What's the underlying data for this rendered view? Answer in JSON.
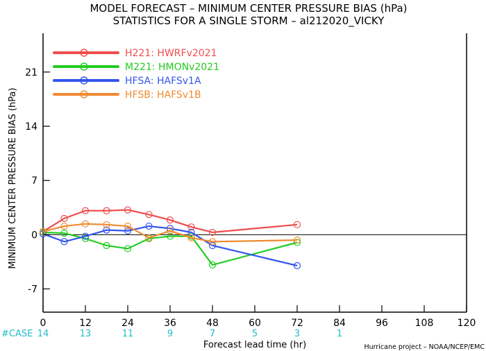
{
  "chart_data": {
    "type": "line",
    "title": "MODEL FORECAST – MINIMUM CENTER PRESSURE BIAS (hPa)",
    "subtitle": "STATISTICS FOR A SINGLE STORM – al212020_VICKY",
    "xlabel": "Forecast lead time (hr)",
    "ylabel": "MINIMUM CENTER PRESSURE BIAS (hPa)",
    "xlim": [
      0,
      120
    ],
    "ylim": [
      -10,
      26
    ],
    "x_ticks": [
      0,
      12,
      24,
      36,
      48,
      60,
      72,
      84,
      96,
      108,
      120
    ],
    "y_ticks": [
      -7,
      0,
      7,
      14,
      21
    ],
    "zero_line": true,
    "legend_position": "top-left",
    "series": [
      {
        "name": "H221: HWRFv2021",
        "color": "#ef4d4d",
        "points": [
          [
            0,
            0.4
          ],
          [
            6,
            2.1
          ],
          [
            12,
            3.1
          ],
          [
            18,
            3.1
          ],
          [
            24,
            3.2
          ],
          [
            30,
            2.6
          ],
          [
            36,
            1.9
          ],
          [
            42,
            1.0
          ],
          [
            48,
            0.3
          ],
          [
            72,
            1.3
          ]
        ]
      },
      {
        "name": "M221: HMONv2021",
        "color": "#22cc22",
        "points": [
          [
            0,
            0.3
          ],
          [
            6,
            0.2
          ],
          [
            12,
            -0.5
          ],
          [
            18,
            -1.4
          ],
          [
            24,
            -1.8
          ],
          [
            30,
            -0.5
          ],
          [
            36,
            -0.2
          ],
          [
            42,
            -0.2
          ],
          [
            48,
            -3.9
          ],
          [
            72,
            -1.0
          ]
        ]
      },
      {
        "name": "HFSA: HAFSv1A",
        "color": "#3355ee",
        "points": [
          [
            0,
            0.1
          ],
          [
            6,
            -0.9
          ],
          [
            12,
            -0.2
          ],
          [
            18,
            0.6
          ],
          [
            24,
            0.5
          ],
          [
            30,
            1.1
          ],
          [
            36,
            0.8
          ],
          [
            42,
            0.3
          ],
          [
            48,
            -1.4
          ],
          [
            72,
            -4.0
          ]
        ]
      },
      {
        "name": "HFSB: HAFSv1B",
        "color": "#f08a30",
        "points": [
          [
            0,
            0.4
          ],
          [
            6,
            1.1
          ],
          [
            12,
            1.4
          ],
          [
            18,
            1.3
          ],
          [
            24,
            1.1
          ],
          [
            30,
            -0.4
          ],
          [
            36,
            0.5
          ],
          [
            42,
            -0.4
          ],
          [
            48,
            -0.9
          ],
          [
            72,
            -0.7
          ]
        ]
      }
    ],
    "case_row": {
      "label": "#CASE",
      "color": "#22bbcc",
      "entries": [
        {
          "x": 0,
          "n": "14"
        },
        {
          "x": 12,
          "n": "13"
        },
        {
          "x": 24,
          "n": "11"
        },
        {
          "x": 36,
          "n": "9"
        },
        {
          "x": 48,
          "n": "7"
        },
        {
          "x": 60,
          "n": "5"
        },
        {
          "x": 72,
          "n": "3"
        },
        {
          "x": 84,
          "n": "1"
        }
      ]
    },
    "credit": "Hurricane project – NOAA/NCEP/EMC"
  }
}
